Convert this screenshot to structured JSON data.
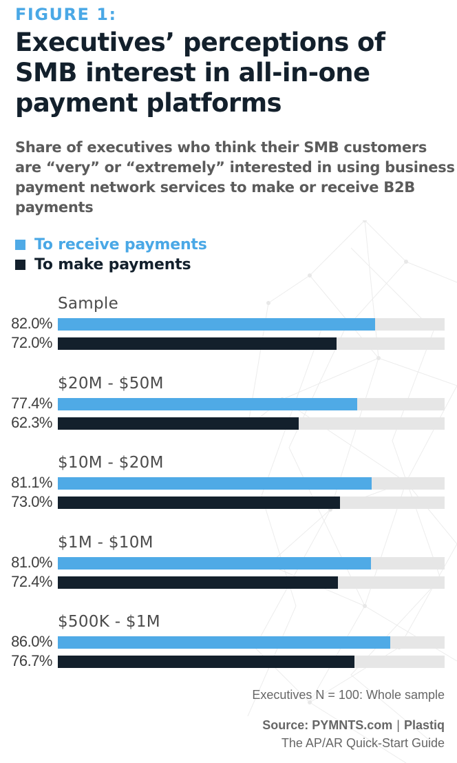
{
  "figure_label": "FIGURE 1:",
  "title": "Executives’ perceptions of SMB interest in all-in-one payment platforms",
  "subtitle": "Share of executives who think their SMB customers are “very” or “extremely” interested in using business payment network services to make or receive B2B payments",
  "legend": [
    {
      "label": "To receive payments",
      "color": "#4faae6"
    },
    {
      "label": "To make payments",
      "color": "#13202c"
    }
  ],
  "colors": {
    "receive": "#4faae6",
    "make": "#13202c",
    "track": "#e6e6e6",
    "accent": "#4aa8e6"
  },
  "note": "Executives N = 100: Whole sample",
  "source": {
    "prefix": "Source: PYMNTS.com",
    "separator": "|",
    "partner": "Plastiq"
  },
  "guide": "The AP/AR Quick-Start Guide",
  "chart_data": {
    "type": "bar",
    "orientation": "horizontal",
    "title": "Executives’ perceptions of SMB interest in all-in-one payment platforms",
    "subtitle": "Share of executives who think their SMB customers are “very” or “extremely” interested in using business payment network services to make or receive B2B payments",
    "categories": [
      "Sample",
      "$20M - $50M",
      "$10M - $20M",
      "$1M - $10M",
      "$500K - $1M"
    ],
    "series": [
      {
        "name": "To receive payments",
        "color": "#4faae6",
        "values": [
          82.0,
          77.4,
          81.1,
          81.0,
          86.0
        ],
        "labels": [
          "82.0%",
          "77.4%",
          "81.1%",
          "81.0%",
          "86.0%"
        ]
      },
      {
        "name": "To make payments",
        "color": "#13202c",
        "values": [
          72.0,
          62.3,
          73.0,
          72.4,
          76.7
        ],
        "labels": [
          "72.0%",
          "62.3%",
          "73.0%",
          "72.4%",
          "76.7%"
        ]
      }
    ],
    "xlim": [
      0,
      100
    ],
    "xlabel": "",
    "ylabel": "",
    "grid": false,
    "legend_position": "top-left",
    "annotations": [
      "Executives N = 100: Whole sample"
    ]
  }
}
